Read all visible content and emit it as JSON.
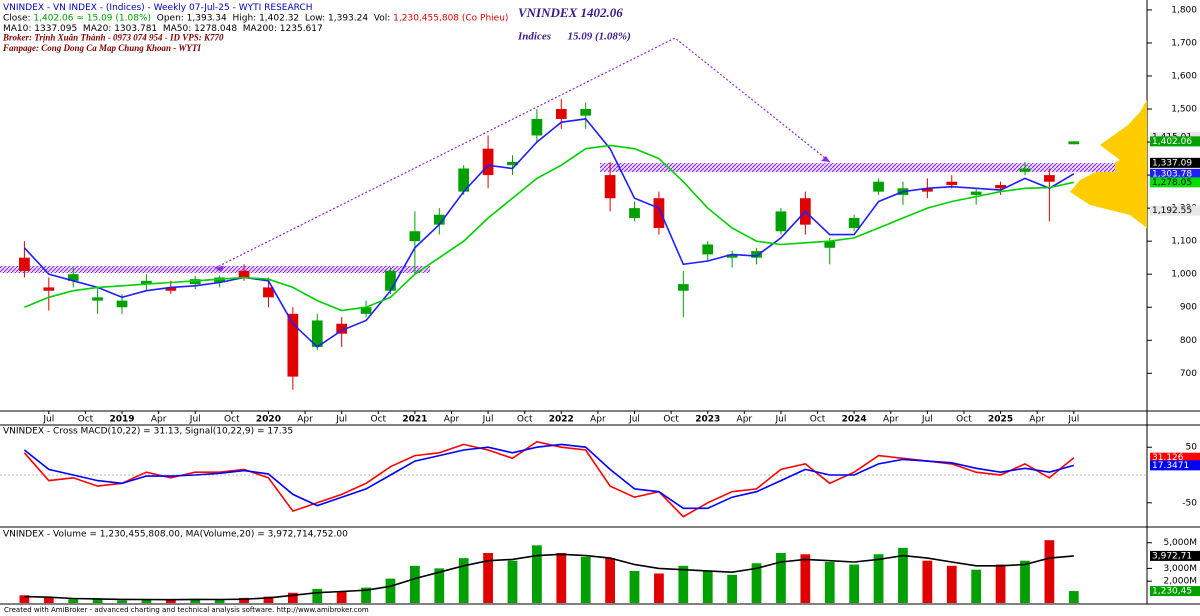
{
  "chart_data": [
    {
      "type": "candlestick",
      "header_lines": [
        {
          "italic": false,
          "segments": [
            {
              "text": "VNINDEX - VN INDEX - (Indices) - Weekly 07-Jul-25 - WYTI RESEARCH",
              "color": "#0000c0"
            }
          ]
        },
        {
          "italic": false,
          "segments": [
            {
              "text": "Close: ",
              "color": "#000000"
            },
            {
              "text": "1,402.06 ≈ 15.09 (1.08%)",
              "color": "#00a000"
            },
            {
              "text": "  Open: ",
              "color": "#000000"
            },
            {
              "text": "1,393.34",
              "color": "#000000"
            },
            {
              "text": "  High: ",
              "color": "#000000"
            },
            {
              "text": "1,402.32",
              "color": "#000000"
            },
            {
              "text": "  Low: ",
              "color": "#000000"
            },
            {
              "text": "1,393.24",
              "color": "#000000"
            },
            {
              "text": "  Vol: ",
              "color": "#000000"
            },
            {
              "text": "1,230,455,808 (Co Phieu)",
              "color": "#e00000"
            }
          ]
        },
        {
          "italic": false,
          "segments": [
            {
              "text": "MA10: 1337.095  MA20: 1303.781  MA50: 1278.048  MA200: 1235.617",
              "color": "#000000"
            }
          ]
        },
        {
          "italic": true,
          "segments": [
            {
              "text": "Broker: Trịnh Xuân Thành - 0973 074 954 - ID VPS: K770",
              "color": "#800000"
            }
          ]
        },
        {
          "italic": true,
          "segments": [
            {
              "text": "Fanpage: Cong Dong Ca Map Chung Khoan - WYTI",
              "color": "#800000"
            }
          ]
        }
      ],
      "annotations": [
        "VNINDEX 1402.06",
        "Indices      15.09 (1.08%)"
      ],
      "x": [
        "2018-05",
        "2018-07",
        "2018-09",
        "2018-11",
        "2019-01",
        "2019-03",
        "2019-05",
        "2019-07",
        "2019-09",
        "2019-11",
        "2020-01",
        "2020-03",
        "2020-05",
        "2020-07",
        "2020-09",
        "2020-11",
        "2021-01",
        "2021-03",
        "2021-05",
        "2021-07",
        "2021-09",
        "2021-11",
        "2022-01",
        "2022-03",
        "2022-05",
        "2022-07",
        "2022-09",
        "2022-11",
        "2023-01",
        "2023-03",
        "2023-05",
        "2023-07",
        "2023-09",
        "2023-11",
        "2024-01",
        "2024-03",
        "2024-05",
        "2024-07",
        "2024-09",
        "2024-11",
        "2025-01",
        "2025-03",
        "2025-05",
        "2025-07"
      ],
      "ohlc": [
        [
          1050,
          1100,
          990,
          1010
        ],
        [
          960,
          990,
          890,
          950
        ],
        [
          980,
          1020,
          960,
          1000
        ],
        [
          920,
          960,
          880,
          930
        ],
        [
          900,
          940,
          880,
          920
        ],
        [
          970,
          1000,
          950,
          980
        ],
        [
          960,
          980,
          940,
          950
        ],
        [
          970,
          995,
          955,
          985
        ],
        [
          975,
          995,
          960,
          990
        ],
        [
          1010,
          1030,
          980,
          990
        ],
        [
          960,
          990,
          900,
          930
        ],
        [
          880,
          900,
          650,
          690
        ],
        [
          780,
          880,
          770,
          860
        ],
        [
          850,
          870,
          780,
          820
        ],
        [
          880,
          920,
          870,
          900
        ],
        [
          950,
          1020,
          940,
          1010
        ],
        [
          1100,
          1190,
          1000,
          1130
        ],
        [
          1150,
          1200,
          1120,
          1180
        ],
        [
          1250,
          1330,
          1240,
          1320
        ],
        [
          1380,
          1420,
          1260,
          1300
        ],
        [
          1330,
          1360,
          1300,
          1340
        ],
        [
          1420,
          1500,
          1400,
          1470
        ],
        [
          1500,
          1530,
          1440,
          1470
        ],
        [
          1480,
          1520,
          1440,
          1500
        ],
        [
          1300,
          1340,
          1190,
          1230
        ],
        [
          1170,
          1220,
          1160,
          1200
        ],
        [
          1230,
          1250,
          1120,
          1140
        ],
        [
          950,
          1010,
          870,
          970
        ],
        [
          1060,
          1100,
          1040,
          1090
        ],
        [
          1050,
          1070,
          1020,
          1060
        ],
        [
          1050,
          1080,
          1030,
          1070
        ],
        [
          1130,
          1200,
          1120,
          1190
        ],
        [
          1230,
          1250,
          1120,
          1150
        ],
        [
          1080,
          1110,
          1030,
          1100
        ],
        [
          1140,
          1180,
          1130,
          1170
        ],
        [
          1250,
          1290,
          1240,
          1280
        ],
        [
          1240,
          1280,
          1210,
          1260
        ],
        [
          1260,
          1290,
          1230,
          1250
        ],
        [
          1280,
          1300,
          1260,
          1270
        ],
        [
          1240,
          1260,
          1210,
          1250
        ],
        [
          1270,
          1280,
          1240,
          1260
        ],
        [
          1310,
          1340,
          1300,
          1320
        ],
        [
          1300,
          1320,
          1160,
          1280
        ],
        [
          1393.34,
          1402.32,
          1393.24,
          1402.06
        ]
      ],
      "up_color": "#00a000",
      "down_color": "#e00000",
      "series": [
        {
          "name": "MA20",
          "color": "#1f1fff",
          "values": [
            1080,
            1000,
            980,
            960,
            930,
            950,
            960,
            965,
            975,
            990,
            980,
            850,
            780,
            830,
            860,
            950,
            1080,
            1150,
            1250,
            1330,
            1320,
            1400,
            1460,
            1470,
            1380,
            1230,
            1200,
            1030,
            1040,
            1060,
            1055,
            1110,
            1190,
            1120,
            1120,
            1220,
            1250,
            1260,
            1265,
            1260,
            1255,
            1290,
            1260,
            1303.781
          ]
        },
        {
          "name": "MA50",
          "color": "#00d000",
          "values": [
            900,
            930,
            950,
            960,
            965,
            970,
            975,
            980,
            985,
            990,
            985,
            960,
            920,
            890,
            900,
            930,
            1000,
            1050,
            1100,
            1170,
            1230,
            1290,
            1330,
            1380,
            1390,
            1380,
            1350,
            1280,
            1200,
            1140,
            1100,
            1090,
            1095,
            1100,
            1110,
            1140,
            1170,
            1200,
            1220,
            1235,
            1250,
            1260,
            1262,
            1278.048
          ]
        }
      ],
      "xlim": [
        "2018-03",
        "2026-01"
      ],
      "xticks": [
        {
          "value": "2018-07",
          "label": "Jul"
        },
        {
          "value": "2018-10",
          "label": "Oct"
        },
        {
          "value": "2019-01",
          "label": "2019"
        },
        {
          "value": "2019-04",
          "label": "Apr"
        },
        {
          "value": "2019-07",
          "label": "Jul"
        },
        {
          "value": "2019-10",
          "label": "Oct"
        },
        {
          "value": "2020-01",
          "label": "2020"
        },
        {
          "value": "2020-04",
          "label": "Apr"
        },
        {
          "value": "2020-07",
          "label": "Jul"
        },
        {
          "value": "2020-10",
          "label": "Oct"
        },
        {
          "value": "2021-01",
          "label": "2021"
        },
        {
          "value": "2021-04",
          "label": "Apr"
        },
        {
          "value": "2021-07",
          "label": "Jul"
        },
        {
          "value": "2021-10",
          "label": "Oct"
        },
        {
          "value": "2022-01",
          "label": "2022"
        },
        {
          "value": "2022-04",
          "label": "Apr"
        },
        {
          "value": "2022-07",
          "label": "Jul"
        },
        {
          "value": "2022-10",
          "label": "Oct"
        },
        {
          "value": "2023-01",
          "label": "2023"
        },
        {
          "value": "2023-04",
          "label": "Apr"
        },
        {
          "value": "2023-07",
          "label": "Jul"
        },
        {
          "value": "2023-10",
          "label": "Oct"
        },
        {
          "value": "2024-01",
          "label": "2024"
        },
        {
          "value": "2024-04",
          "label": "Apr"
        },
        {
          "value": "2024-07",
          "label": "Jul"
        },
        {
          "value": "2024-10",
          "label": "Oct"
        },
        {
          "value": "2025-01",
          "label": "2025"
        },
        {
          "value": "2025-04",
          "label": "Apr"
        },
        {
          "value": "2025-07",
          "label": "Jul"
        }
      ],
      "ylim": [
        595,
        1830
      ],
      "yticks": [
        700,
        800,
        900,
        {
          "value": 1000,
          "label": "1,000"
        },
        {
          "value": 1100,
          "label": "1,100"
        },
        {
          "value": 1200,
          "label": "1,200"
        },
        {
          "value": 1300,
          "label": "1,300"
        },
        {
          "value": 1400,
          "label": "1,400"
        },
        {
          "value": 1500,
          "label": "1,500"
        },
        {
          "value": 1600,
          "label": "1,600"
        },
        {
          "value": 1700,
          "label": "1,700"
        },
        {
          "value": 1800,
          "label": "1,800"
        }
      ],
      "price_boxes": [
        {
          "value": 1415.01,
          "label": "1,415.01",
          "color": "#e6e6e6",
          "text_color": "#000000"
        },
        {
          "value": 1402.06,
          "label": "1,402.06",
          "color": "#00a000",
          "text_color": "#ffffff"
        },
        {
          "value": 1337.09,
          "label": "1,337.09",
          "color": "#000000",
          "text_color": "#ffffff"
        },
        {
          "value": 1303.78,
          "label": "1,303.78",
          "color": "#1f1fff",
          "text_color": "#ffffff"
        },
        {
          "value": 1278.05,
          "label": "1,278.05",
          "color": "#00e000",
          "text_color": "#000000"
        },
        {
          "value": 1192.55,
          "label": "1,192.55",
          "color": "#e6e6e6",
          "text_color": "#000000"
        }
      ]
    },
    {
      "type": "line",
      "title": "VNINDEX - Cross MACD(10,22) = 31.13, Signal(10,22,9) = 17.35",
      "series": [
        {
          "name": "MACD",
          "color": "#ff0000",
          "values": [
            40,
            -10,
            -5,
            -20,
            -15,
            5,
            -5,
            5,
            5,
            10,
            -5,
            -65,
            -50,
            -35,
            -15,
            15,
            35,
            40,
            55,
            45,
            30,
            60,
            50,
            45,
            -20,
            -40,
            -30,
            -75,
            -50,
            -30,
            -25,
            10,
            20,
            -15,
            5,
            35,
            30,
            25,
            20,
            5,
            0,
            20,
            -5,
            31.13
          ]
        },
        {
          "name": "Signal",
          "color": "#0000ff",
          "values": [
            45,
            10,
            0,
            -10,
            -15,
            -2,
            -2,
            0,
            3,
            8,
            2,
            -35,
            -55,
            -40,
            -25,
            0,
            25,
            35,
            45,
            50,
            40,
            50,
            55,
            50,
            10,
            -25,
            -30,
            -60,
            -60,
            -40,
            -30,
            -10,
            10,
            0,
            0,
            20,
            28,
            25,
            22,
            12,
            5,
            12,
            5,
            17.35
          ]
        }
      ],
      "ylim": [
        -90,
        90
      ],
      "yticks": [
        -50,
        50
      ],
      "price_boxes": [
        {
          "value": 31.126,
          "label": "31.126",
          "color": "#ff0000",
          "text_color": "#ffffff"
        },
        {
          "value": 17.3471,
          "label": "17.3471",
          "color": "#0000ff",
          "text_color": "#ffffff"
        }
      ]
    },
    {
      "type": "bar",
      "title": "VNINDEX - Volume = 1,230,455,808.00, MA(Volume,20) = 3,972,714,752.00",
      "values": [
        900,
        700,
        600,
        650,
        500,
        600,
        550,
        600,
        550,
        700,
        800,
        1100,
        1400,
        1200,
        1500,
        2200,
        3200,
        3000,
        3800,
        4200,
        3600,
        4800,
        4200,
        3900,
        3800,
        2800,
        2600,
        3200,
        2800,
        2500,
        3400,
        4200,
        4100,
        3500,
        3300,
        4100,
        4600,
        3600,
        3200,
        2900,
        3300,
        3600,
        5200,
        1230.455808
      ],
      "series": [
        {
          "name": "MA(Volume,20)",
          "color": "#000000",
          "values": [
            800,
            750,
            650,
            620,
            580,
            570,
            560,
            580,
            570,
            600,
            700,
            900,
            1100,
            1200,
            1300,
            1600,
            2200,
            2700,
            3200,
            3600,
            3700,
            4000,
            4100,
            4000,
            3800,
            3300,
            3000,
            2900,
            2800,
            2700,
            3000,
            3500,
            3700,
            3600,
            3500,
            3700,
            4000,
            3800,
            3500,
            3200,
            3200,
            3300,
            3800,
            3972.714752
          ]
        }
      ],
      "ylim": [
        300,
        6150
      ],
      "yticks": [
        {
          "value": 5000,
          "label": "5,000M"
        },
        {
          "value": 3000,
          "label": "3,000M"
        },
        {
          "value": 2000,
          "label": "2,000M"
        }
      ],
      "end_labels": [
        "3,972,71",
        "1,230,45"
      ]
    }
  ],
  "footer": "Created with AmiBroker - advanced charting and technical analysis software. http://www.amibroker.com"
}
